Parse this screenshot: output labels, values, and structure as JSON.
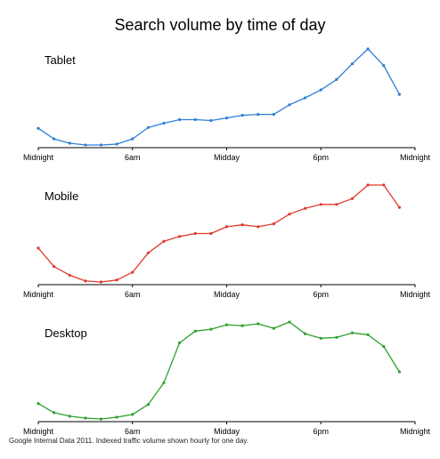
{
  "title": "Search volume by time of day",
  "source": "Google Internal Data 2011. Indexed traffic volume shown hourly for one day.",
  "chart_data": [
    {
      "type": "line",
      "series_label": "Tablet",
      "color": "#2f7fd6",
      "x": [
        0,
        1,
        2,
        3,
        4,
        5,
        6,
        7,
        8,
        9,
        10,
        11,
        12,
        13,
        14,
        15,
        16,
        17,
        18,
        19,
        20,
        21,
        22,
        23
      ],
      "values": [
        19,
        7,
        2,
        0,
        0,
        1,
        7,
        20,
        25,
        29,
        29,
        28,
        31,
        34,
        35,
        35,
        46,
        54,
        63,
        75,
        93,
        110,
        91,
        58
      ],
      "x_ticks": [
        {
          "hour": 0,
          "label": "Midnight"
        },
        {
          "hour": 6,
          "label": "6am"
        },
        {
          "hour": 12,
          "label": "Midday"
        },
        {
          "hour": 18,
          "label": "6pm"
        },
        {
          "hour": 24,
          "label": "Midnight"
        }
      ],
      "ylim": [
        0,
        110
      ],
      "grid": false
    },
    {
      "type": "line",
      "series_label": "Mobile",
      "color": "#e03a2f",
      "x": [
        0,
        1,
        2,
        3,
        4,
        5,
        6,
        7,
        8,
        9,
        10,
        11,
        12,
        13,
        14,
        15,
        16,
        17,
        18,
        19,
        20,
        21,
        22,
        23
      ],
      "values": [
        35,
        16,
        7,
        1,
        0,
        2,
        10,
        30,
        42,
        47,
        50,
        50,
        57,
        59,
        57,
        60,
        70,
        76,
        80,
        80,
        86,
        100,
        100,
        77
      ],
      "x_ticks": [
        {
          "hour": 0,
          "label": "Midnight"
        },
        {
          "hour": 6,
          "label": "6am"
        },
        {
          "hour": 12,
          "label": "Midday"
        },
        {
          "hour": 18,
          "label": "6pm"
        },
        {
          "hour": 24,
          "label": "Midnight"
        }
      ],
      "ylim": [
        0,
        100
      ],
      "grid": false
    },
    {
      "type": "line",
      "series_label": "Desktop",
      "color": "#2ea02e",
      "x": [
        0,
        1,
        2,
        3,
        4,
        5,
        6,
        7,
        8,
        9,
        10,
        11,
        12,
        13,
        14,
        15,
        16,
        17,
        18,
        19,
        20,
        21,
        22,
        23
      ],
      "values": [
        17,
        7,
        3,
        1,
        0,
        2,
        5,
        16,
        40,
        84,
        97,
        99,
        104,
        103,
        105,
        100,
        107,
        94,
        89,
        90,
        95,
        93,
        80,
        52
      ],
      "x_ticks": [
        {
          "hour": 0,
          "label": "Midnight"
        },
        {
          "hour": 6,
          "label": "6am"
        },
        {
          "hour": 12,
          "label": "Midday"
        },
        {
          "hour": 18,
          "label": "6pm"
        },
        {
          "hour": 24,
          "label": "Midnight"
        }
      ],
      "ylim": [
        0,
        107
      ],
      "grid": false
    }
  ]
}
